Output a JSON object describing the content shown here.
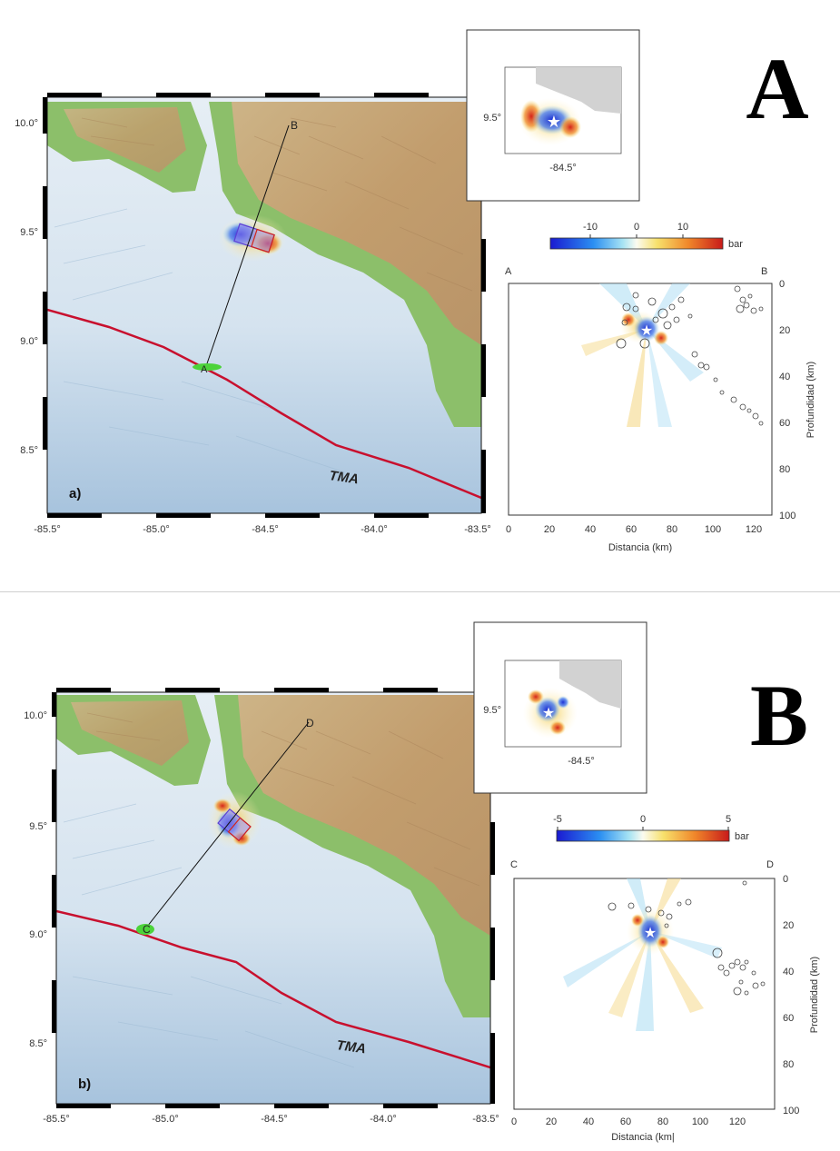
{
  "panel_a": {
    "letter": "A",
    "sublabel": "a)",
    "trench_label": "TMA",
    "profile_start": "A",
    "profile_end": "B",
    "map_x_ticks": [
      "-85.5°",
      "-85.0°",
      "-84.5°",
      "-84.0°",
      "-83.5°"
    ],
    "map_y_ticks": [
      "10.0°",
      "9.5°",
      "9.0°",
      "8.5°"
    ],
    "inset_y_tick": "9.5°",
    "inset_x_tick": "-84.5°",
    "colorbar_ticks": [
      "-10",
      "0",
      "10"
    ],
    "colorbar_unit": "bar",
    "section_x_ticks": [
      "0",
      "20",
      "40",
      "60",
      "80",
      "100",
      "120"
    ],
    "section_y_ticks": [
      "0",
      "20",
      "40",
      "60",
      "80",
      "100"
    ],
    "section_xlabel": "Distancia (km)",
    "section_ylabel": "Profundidad (km)"
  },
  "panel_b": {
    "letter": "B",
    "sublabel": "b)",
    "trench_label": "TMA",
    "profile_start": "C",
    "profile_end": "D",
    "map_x_ticks": [
      "-85.5°",
      "-85.0°",
      "-84.5°",
      "-84.0°",
      "-83.5°"
    ],
    "map_y_ticks": [
      "10.0°",
      "9.5°",
      "9.0°",
      "8.5°"
    ],
    "inset_y_tick": "9.5°",
    "inset_x_tick": "-84.5°",
    "colorbar_ticks": [
      "-5",
      "0",
      "5"
    ],
    "colorbar_unit": "bar",
    "section_x_ticks": [
      "0",
      "20",
      "40",
      "60",
      "80",
      "100",
      "120"
    ],
    "section_y_ticks": [
      "0",
      "20",
      "40",
      "60",
      "80",
      "100"
    ],
    "section_xlabel": "Distancia (km|",
    "section_ylabel": "Profundidad (km)"
  },
  "colors": {
    "trench": "#c8102e",
    "land_green": "#7fb86a",
    "land_brown": "#c9a878",
    "sea_light": "#dfe9f2",
    "sea_deep": "#a9c4de",
    "stress_negative": "#1b2fd6",
    "stress_positive": "#d4241a",
    "profile_start_marker": "#4cd33a"
  }
}
